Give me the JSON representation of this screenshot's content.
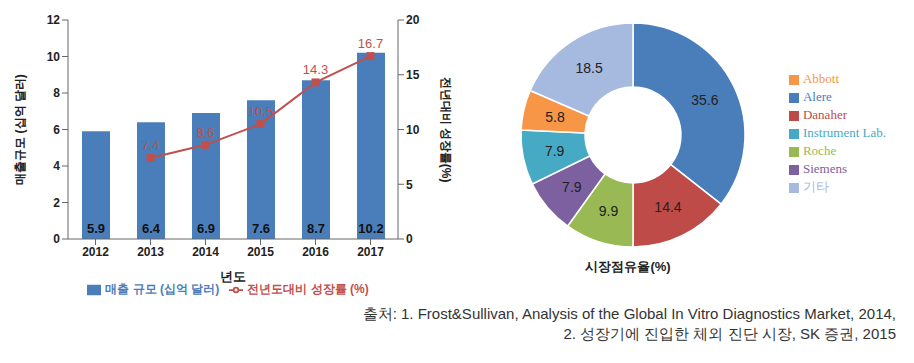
{
  "chart_data": [
    {
      "type": "bar",
      "categories": [
        "2012",
        "2013",
        "2014",
        "2015",
        "2016",
        "2017"
      ],
      "x_label": "년도",
      "y_label": "매출규모 (십억 달러)",
      "y2_label": "전년대비 성장률(%)",
      "series": [
        {
          "name": "매출 규모 (십억 달러)",
          "type": "bar",
          "color": "#4a7ebb",
          "values": [
            5.9,
            6.4,
            6.9,
            7.6,
            8.7,
            10.2
          ]
        },
        {
          "name": "전년도대비 성장률 (%)",
          "type": "line",
          "axis": "y2",
          "color": "#c0504d",
          "marker": "square",
          "values": [
            null,
            7.4,
            8.6,
            10.5,
            14.3,
            16.7
          ]
        }
      ],
      "ylim": [
        0,
        12
      ],
      "yticks": [
        0,
        2,
        4,
        6,
        8,
        10,
        12
      ],
      "y2lim": [
        0,
        20
      ],
      "y2ticks": [
        0,
        5,
        10,
        15,
        20
      ],
      "grid": false,
      "legend": "bottom",
      "data_labels": true
    },
    {
      "type": "pie",
      "title": "시장점유율(%)",
      "categories": [
        "Alere",
        "Danaher",
        "Roche",
        "Siemens",
        "Instrument Lab.",
        "Abbott",
        "기타"
      ],
      "values": [
        35.6,
        14.4,
        9.9,
        7.9,
        7.9,
        5.8,
        18.5
      ],
      "colors": [
        "#4a7ebb",
        "#be4b48",
        "#98b954",
        "#7d60a0",
        "#46aac5",
        "#f79646",
        "#a6b9df"
      ],
      "legend": "right",
      "data_labels": true
    }
  ],
  "source": [
    "출처: 1. Frost&Sullivan, Analysis of the Global In Vitro Diagnostics Market, 2014,",
    "2. 성장기에 진입한 체외 진단 시장, SK 증권, 2015"
  ]
}
